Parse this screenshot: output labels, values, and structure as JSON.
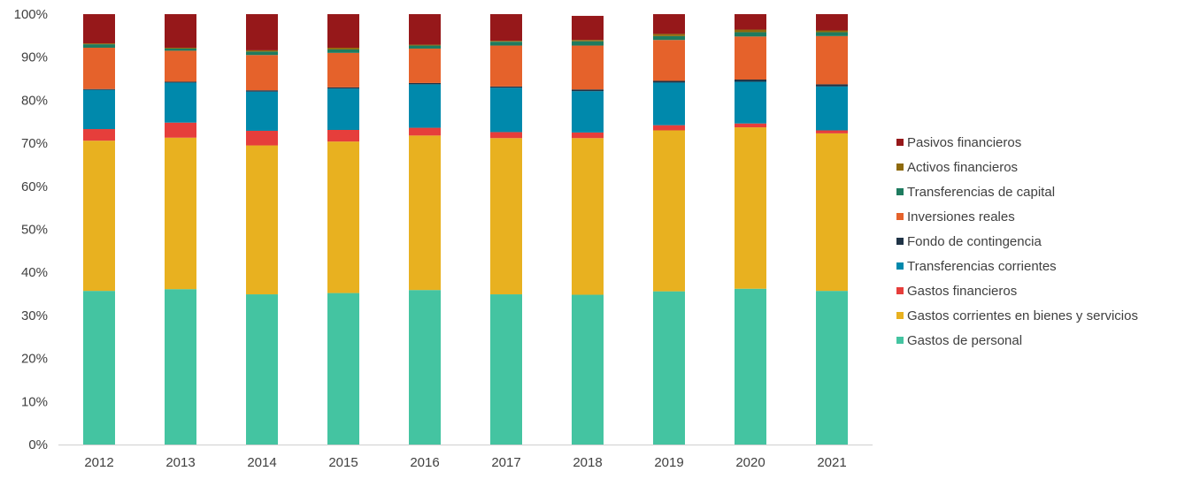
{
  "chart_data": {
    "type": "bar",
    "stacked": true,
    "percent": true,
    "categories": [
      "2012",
      "2013",
      "2014",
      "2015",
      "2016",
      "2017",
      "2018",
      "2019",
      "2020",
      "2021"
    ],
    "y_ticks": [
      "0%",
      "10%",
      "20%",
      "30%",
      "40%",
      "50%",
      "60%",
      "70%",
      "80%",
      "90%",
      "100%"
    ],
    "ylim": [
      0,
      100
    ],
    "grid": false,
    "legend_position": "right",
    "series": [
      {
        "name": "Gastos de personal",
        "color": "#44C4A1",
        "values": [
          35.7,
          36.1,
          34.9,
          35.2,
          35.9,
          34.9,
          34.8,
          35.6,
          36.2,
          35.7
        ]
      },
      {
        "name": "Gastos corrientes en bienes y servicios",
        "color": "#E8B120",
        "values": [
          34.9,
          35.2,
          34.6,
          35.2,
          35.9,
          36.3,
          36.4,
          37.4,
          37.5,
          36.6
        ]
      },
      {
        "name": "Gastos financieros",
        "color": "#E63E3B",
        "values": [
          2.7,
          3.5,
          3.4,
          2.7,
          1.8,
          1.4,
          1.3,
          1.2,
          0.9,
          0.7
        ]
      },
      {
        "name": "Transferencias corrientes",
        "color": "#0089AC",
        "values": [
          9.1,
          9.3,
          9.1,
          9.6,
          10.1,
          10.3,
          9.6,
          9.9,
          9.7,
          10.2
        ]
      },
      {
        "name": "Fondo de contingencia",
        "color": "#1F3346",
        "values": [
          0.2,
          0.2,
          0.3,
          0.3,
          0.3,
          0.3,
          0.4,
          0.4,
          0.5,
          0.5
        ]
      },
      {
        "name": "Inversiones reales",
        "color": "#E5622B",
        "values": [
          9.6,
          7.2,
          8.2,
          8.0,
          8.0,
          9.5,
          10.2,
          9.5,
          10.0,
          11.2
        ]
      },
      {
        "name": "Transferencias de capital",
        "color": "#1E7B5F",
        "values": [
          0.8,
          0.5,
          0.8,
          0.8,
          0.7,
          0.9,
          1.0,
          0.9,
          1.0,
          0.9
        ]
      },
      {
        "name": "Activos financieros",
        "color": "#8E6A0C",
        "values": [
          0.2,
          0.2,
          0.3,
          0.4,
          0.2,
          0.2,
          0.3,
          0.5,
          0.6,
          0.4
        ]
      },
      {
        "name": "Pasivos financieros",
        "color": "#96181A",
        "values": [
          6.8,
          7.8,
          8.4,
          7.8,
          7.1,
          6.2,
          5.6,
          4.6,
          3.6,
          3.8
        ]
      }
    ]
  }
}
